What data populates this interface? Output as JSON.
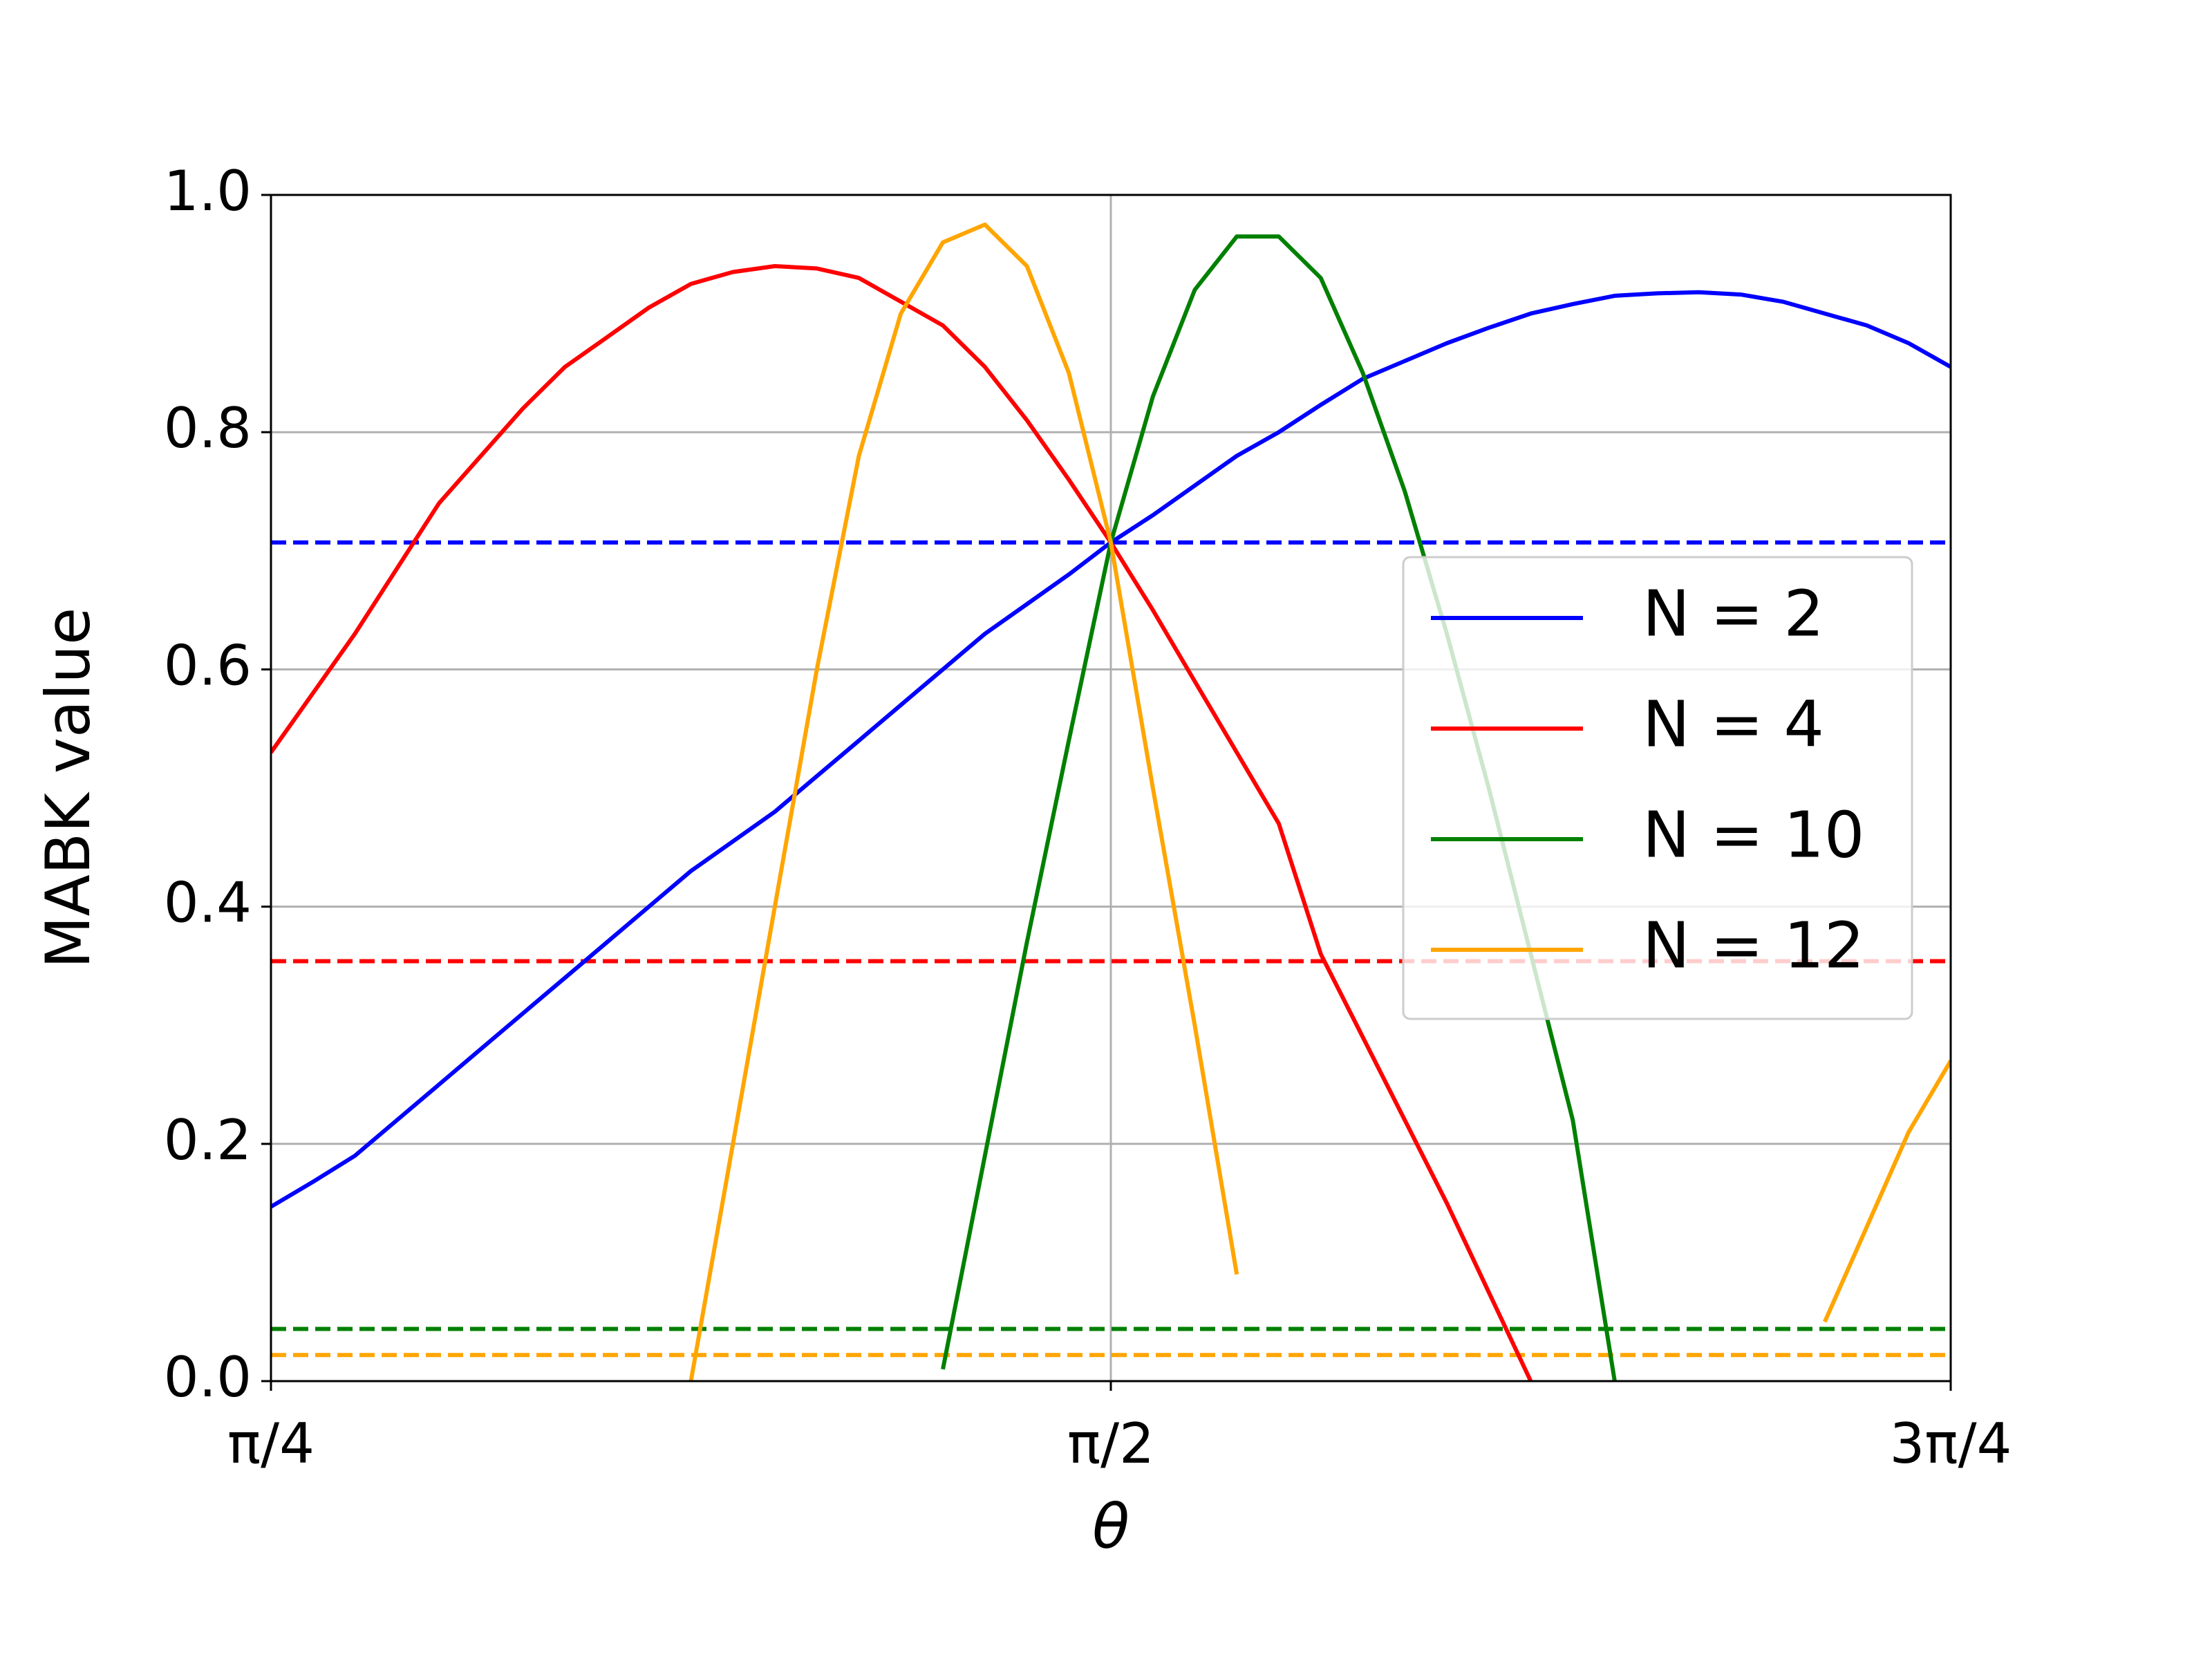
{
  "chart_data": {
    "type": "line",
    "x_label": "θ",
    "y_label": "MABK value",
    "x": [
      0.7854,
      0.8247,
      0.8639,
      0.9032,
      0.9425,
      0.9817,
      1.021,
      1.0603,
      1.0996,
      1.1388,
      1.1781,
      1.2174,
      1.2566,
      1.2959,
      1.3352,
      1.3744,
      1.4137,
      1.453,
      1.4923,
      1.5315,
      1.5708,
      1.6101,
      1.6493,
      1.6886,
      1.7279,
      1.7671,
      1.8064,
      1.8457,
      1.885,
      1.9242,
      1.9635,
      2.0028,
      2.042,
      2.0813,
      2.1206,
      2.1598,
      2.1991,
      2.2384,
      2.2777,
      2.3169,
      2.3562
    ],
    "series": [
      {
        "name": "N = 2",
        "color": "#0000ff",
        "values": [
          0.147,
          0.168,
          0.19,
          0.22,
          0.25,
          0.28,
          0.31,
          0.34,
          0.37,
          0.4,
          0.43,
          0.455,
          0.48,
          0.51,
          0.54,
          0.57,
          0.6,
          0.63,
          0.655,
          0.68,
          0.707,
          0.73,
          0.755,
          0.78,
          0.8,
          0.823,
          0.845,
          0.86,
          0.875,
          0.888,
          0.9,
          0.908,
          0.915,
          0.917,
          0.918,
          0.916,
          0.91,
          0.9,
          0.89,
          0.875,
          0.855
        ]
      },
      {
        "name": "N = 4",
        "color": "#ff0000",
        "values": [
          0.53,
          0.58,
          0.63,
          0.685,
          0.74,
          0.78,
          0.82,
          0.855,
          0.88,
          0.905,
          0.925,
          0.935,
          0.94,
          0.938,
          0.93,
          0.91,
          0.89,
          0.855,
          0.81,
          0.76,
          0.707,
          0.65,
          0.59,
          0.53,
          0.47,
          0.36,
          0.29,
          0.22,
          0.15,
          0.075,
          0.0,
          null,
          null,
          null,
          null,
          null,
          null,
          null,
          null,
          null,
          null
        ]
      },
      {
        "name": "N = 10",
        "color": "#008000",
        "values": [
          null,
          null,
          null,
          null,
          null,
          null,
          null,
          null,
          null,
          null,
          null,
          null,
          null,
          null,
          null,
          null,
          0.01,
          0.19,
          0.37,
          0.54,
          0.707,
          0.83,
          0.92,
          0.965,
          0.965,
          0.93,
          0.85,
          0.75,
          0.63,
          0.5,
          0.36,
          0.22,
          0.0,
          null,
          null,
          null,
          null,
          null,
          null,
          null,
          null
        ]
      },
      {
        "name": "N = 12",
        "color": "#ffa500",
        "values": [
          null,
          null,
          null,
          null,
          null,
          null,
          null,
          null,
          null,
          null,
          0.0,
          0.2,
          0.4,
          0.6,
          0.78,
          0.9,
          0.96,
          0.975,
          0.94,
          0.85,
          0.707,
          0.5,
          0.3,
          0.09,
          null,
          null,
          null,
          null,
          null,
          null,
          null,
          null,
          null,
          null,
          null,
          null,
          null,
          0.05,
          0.13,
          0.21,
          0.27
        ]
      }
    ],
    "hlines": [
      {
        "value": 0.707,
        "color": "#0000ff"
      },
      {
        "value": 0.354,
        "color": "#ff0000"
      },
      {
        "value": 0.044,
        "color": "#008000"
      },
      {
        "value": 0.022,
        "color": "#ffa500"
      }
    ],
    "xlim": [
      0.7854,
      2.3562
    ],
    "xticks": [
      {
        "value": 0.7854,
        "label": "π/4"
      },
      {
        "value": 1.5708,
        "label": "π/2"
      },
      {
        "value": 2.3562,
        "label": "3π/4"
      }
    ],
    "ylim": [
      0,
      1
    ],
    "yticks": [
      {
        "value": 0,
        "label": "0.0"
      },
      0.2,
      0.4,
      0.6,
      0.8,
      {
        "value": 1,
        "label": "1.0"
      }
    ],
    "grid": true,
    "legend": "center right"
  }
}
